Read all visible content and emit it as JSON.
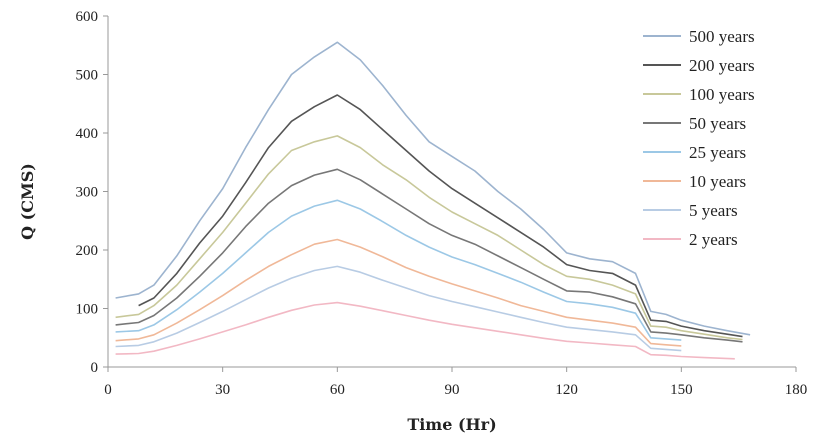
{
  "chart_data": {
    "type": "line",
    "title": "",
    "xlabel": "Time (Hr)",
    "ylabel": "Q (CMS)",
    "xlim": [
      0,
      180
    ],
    "ylim": [
      0,
      600
    ],
    "xticks": [
      0,
      30,
      60,
      90,
      120,
      150,
      180
    ],
    "yticks": [
      0,
      100,
      200,
      300,
      400,
      500,
      600
    ],
    "grid": false,
    "legend_position": "top-right",
    "series": [
      {
        "name": "500 years",
        "color": "#9db4cf",
        "x": [
          2,
          8,
          12,
          18,
          24,
          30,
          36,
          42,
          48,
          54,
          60,
          66,
          72,
          78,
          84,
          90,
          96,
          102,
          108,
          114,
          120,
          126,
          132,
          138,
          142,
          146,
          150,
          156,
          162,
          168
        ],
        "y": [
          118,
          125,
          140,
          190,
          250,
          305,
          375,
          440,
          500,
          530,
          555,
          525,
          480,
          430,
          385,
          360,
          335,
          300,
          270,
          235,
          195,
          185,
          180,
          160,
          95,
          90,
          80,
          70,
          62,
          55
        ]
      },
      {
        "name": "200 years",
        "color": "#555555",
        "x": [
          8,
          12,
          18,
          24,
          30,
          36,
          42,
          48,
          54,
          60,
          66,
          72,
          78,
          84,
          90,
          96,
          102,
          108,
          114,
          120,
          126,
          132,
          138,
          142,
          146,
          150,
          156,
          162,
          166
        ],
        "y": [
          105,
          118,
          160,
          212,
          258,
          315,
          375,
          420,
          445,
          465,
          440,
          405,
          370,
          335,
          305,
          280,
          255,
          230,
          205,
          175,
          165,
          160,
          140,
          80,
          78,
          70,
          62,
          56,
          52
        ]
      },
      {
        "name": "100 years",
        "color": "#c8c89a",
        "x": [
          2,
          8,
          12,
          18,
          24,
          30,
          36,
          42,
          48,
          54,
          60,
          66,
          72,
          78,
          84,
          90,
          96,
          102,
          108,
          114,
          120,
          126,
          132,
          138,
          142,
          146,
          150,
          156,
          162,
          166
        ],
        "y": [
          85,
          90,
          105,
          140,
          185,
          230,
          280,
          330,
          370,
          385,
          395,
          375,
          345,
          320,
          290,
          265,
          245,
          225,
          200,
          175,
          155,
          150,
          140,
          125,
          70,
          68,
          62,
          56,
          50,
          47
        ]
      },
      {
        "name": "50 years",
        "color": "#777777",
        "x": [
          2,
          8,
          12,
          18,
          24,
          30,
          36,
          42,
          48,
          54,
          60,
          66,
          72,
          78,
          84,
          90,
          96,
          102,
          108,
          114,
          120,
          126,
          132,
          138,
          142,
          146,
          150,
          156,
          162,
          166
        ],
        "y": [
          72,
          76,
          88,
          118,
          155,
          195,
          240,
          280,
          310,
          328,
          338,
          320,
          295,
          270,
          245,
          225,
          210,
          190,
          170,
          150,
          130,
          128,
          120,
          108,
          60,
          58,
          55,
          50,
          46,
          43
        ]
      },
      {
        "name": "25 years",
        "color": "#9cc8e6",
        "x": [
          2,
          8,
          12,
          18,
          24,
          30,
          36,
          42,
          48,
          54,
          60,
          66,
          72,
          78,
          84,
          90,
          96,
          102,
          108,
          114,
          120,
          126,
          132,
          138,
          142,
          146,
          150
        ],
        "y": [
          60,
          62,
          72,
          98,
          128,
          160,
          195,
          230,
          258,
          275,
          285,
          270,
          248,
          225,
          205,
          188,
          175,
          160,
          145,
          128,
          112,
          108,
          102,
          92,
          50,
          48,
          46
        ]
      },
      {
        "name": "10 years",
        "color": "#f0b898",
        "x": [
          2,
          8,
          12,
          18,
          24,
          30,
          36,
          42,
          48,
          54,
          60,
          66,
          72,
          78,
          84,
          90,
          96,
          102,
          108,
          114,
          120,
          126,
          132,
          138,
          142,
          146,
          150
        ],
        "y": [
          45,
          48,
          55,
          75,
          98,
          122,
          148,
          172,
          192,
          210,
          218,
          205,
          188,
          170,
          155,
          142,
          130,
          118,
          105,
          95,
          85,
          80,
          75,
          68,
          40,
          38,
          36
        ]
      },
      {
        "name": "5 years",
        "color": "#b8cce4",
        "x": [
          2,
          8,
          12,
          18,
          24,
          30,
          36,
          42,
          48,
          54,
          60,
          66,
          72,
          78,
          84,
          90,
          96,
          102,
          108,
          114,
          120,
          126,
          132,
          138,
          142,
          146,
          150
        ],
        "y": [
          35,
          37,
          43,
          58,
          76,
          95,
          115,
          135,
          152,
          165,
          172,
          162,
          148,
          135,
          122,
          112,
          103,
          94,
          85,
          76,
          68,
          64,
          60,
          55,
          32,
          30,
          28
        ]
      },
      {
        "name": "2 years",
        "color": "#f2b8c4",
        "x": [
          2,
          8,
          12,
          18,
          24,
          30,
          36,
          42,
          48,
          54,
          60,
          66,
          72,
          78,
          84,
          90,
          96,
          102,
          108,
          114,
          120,
          126,
          132,
          138,
          142,
          146,
          150,
          156,
          164
        ],
        "y": [
          22,
          23,
          27,
          37,
          48,
          60,
          72,
          85,
          97,
          106,
          110,
          104,
          96,
          88,
          80,
          73,
          67,
          61,
          55,
          49,
          44,
          41,
          38,
          35,
          21,
          20,
          18,
          16,
          14
        ]
      }
    ]
  }
}
